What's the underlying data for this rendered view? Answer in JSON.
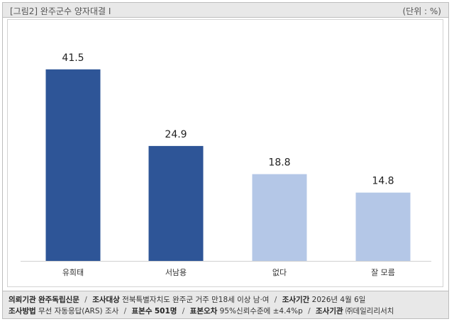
{
  "header": {
    "title": "[그림2] 완주군수 양자대결 I",
    "unit": "(단위 : %)"
  },
  "chart_data": {
    "type": "bar",
    "categories": [
      "유희태",
      "서남용",
      "없다",
      "잘 모름"
    ],
    "values": [
      41.5,
      24.9,
      18.8,
      14.8
    ],
    "value_labels": [
      "41.5",
      "24.9",
      "18.8",
      "14.8"
    ],
    "colors": [
      "#2e5597",
      "#2e5597",
      "#b4c7e7",
      "#b4c7e7"
    ],
    "ylim": [
      0,
      50
    ],
    "grid": false,
    "legend": "none",
    "title": "",
    "xlabel": "",
    "ylabel": ""
  },
  "footer": {
    "line1": [
      {
        "label": "의뢰기관",
        "value": "완주독립신문"
      },
      {
        "label": "조사대상",
        "value": "전북특별자치도 완주군 거주 만18세 이상 남·여"
      },
      {
        "label": "조사기간",
        "value": "2026년 4월 6일"
      }
    ],
    "line2": [
      {
        "label": "조사방법",
        "value": "무선 자동응답(ARS) 조사"
      },
      {
        "label": "표본수",
        "value": "501명"
      },
      {
        "label": "표본오차",
        "value": "95%신뢰수준에 ±4.4%p"
      },
      {
        "label": "조사기관",
        "value": "㈜데일리리서치"
      }
    ],
    "separator": "/"
  }
}
